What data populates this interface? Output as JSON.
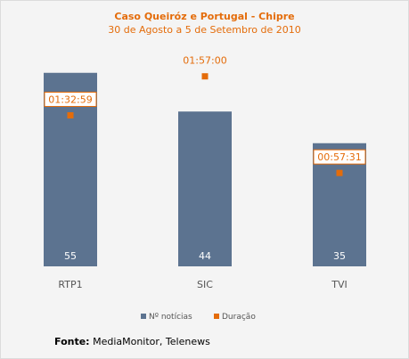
{
  "chart_data": {
    "type": "bar",
    "title": "Caso Queiróz e Portugal - Chipre",
    "subtitle": "30 de Agosto a 5 de Setembro de 2010",
    "categories": [
      "RTP1",
      "SIC",
      "TVI"
    ],
    "series": [
      {
        "name": "Nº notícias",
        "values": [
          55,
          44,
          35
        ],
        "labels": [
          "55",
          "44",
          "35"
        ],
        "color": "#5c7390"
      },
      {
        "name": "Duração",
        "values": [
          "01:32:59",
          "01:57:00",
          "00:57:31"
        ],
        "labels": [
          "01:32:59",
          "01:57:00",
          "00:57:31"
        ],
        "color": "#e46c0a"
      }
    ],
    "ylim": [
      0,
      60
    ],
    "duration_ylim_seconds": [
      0,
      7800
    ],
    "legend_position": "bottom",
    "grid": false
  },
  "footer": {
    "source_label": "Fonte:",
    "source_text": " MediaMonitor, Telenews"
  }
}
